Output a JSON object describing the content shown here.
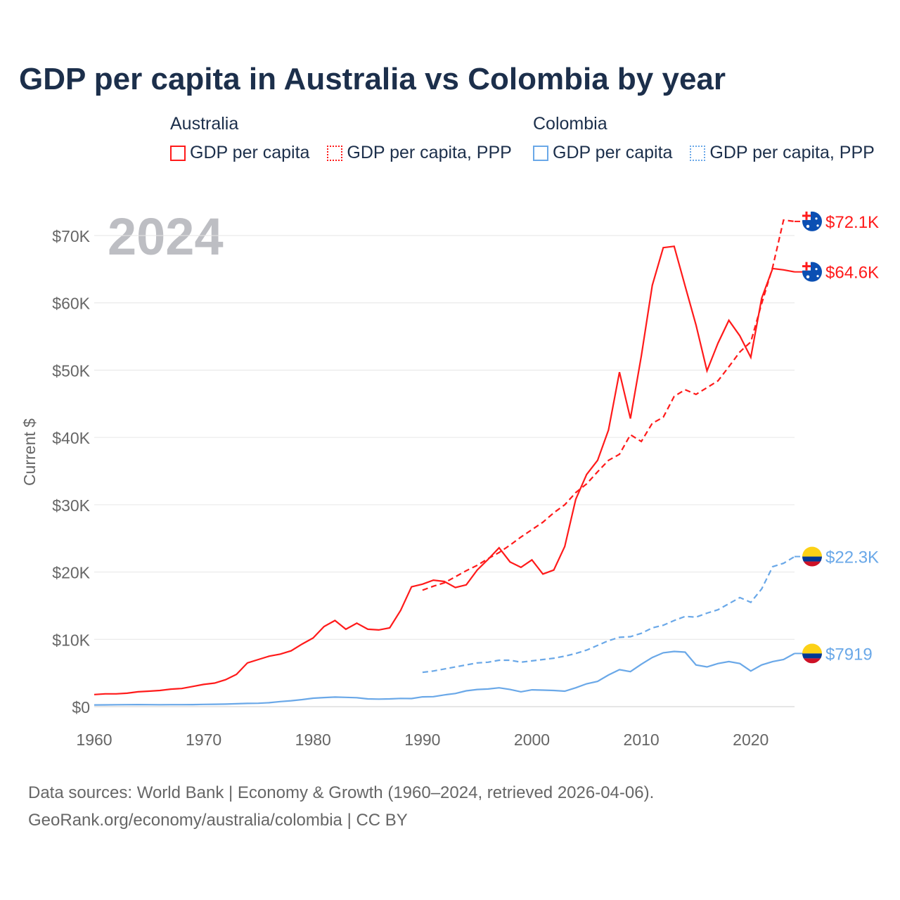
{
  "title": "GDP per capita in Australia vs Colombia by year",
  "legend": [
    {
      "group": "Australia",
      "items": [
        "GDP per capita",
        "GDP per capita, PPP"
      ],
      "color": "#ff1a1a"
    },
    {
      "group": "Colombia",
      "items": [
        "GDP per capita",
        "GDP per capita, PPP"
      ],
      "color": "#6aa8e8"
    }
  ],
  "footer": {
    "line1": "Data sources: World Bank | Economy & Growth (1960–2024, retrieved 2026-04-06).",
    "line2": "GeoRank.org/economy/australia/colombia | CC BY"
  },
  "chart_data": {
    "type": "line",
    "title": "GDP per capita in Australia vs Colombia by year",
    "year_watermark": "2024",
    "ylabel": "Current $",
    "xlabel": "",
    "xlim": [
      1960,
      2024
    ],
    "ylim": [
      0,
      70000
    ],
    "xticks": [
      1960,
      1970,
      1980,
      1990,
      2000,
      2010,
      2020
    ],
    "yticks": [
      0,
      10000,
      20000,
      30000,
      40000,
      50000,
      60000,
      70000
    ],
    "ytick_labels": [
      "$0",
      "$10K",
      "$20K",
      "$30K",
      "$40K",
      "$50K",
      "$60K",
      "$70K"
    ],
    "grid": true,
    "series": [
      {
        "name": "Australia GDP per capita",
        "color": "#ff1a1a",
        "dash": false,
        "start": 1960,
        "end_label": "$64.6K",
        "flag": "australia",
        "values": [
          1.8,
          1.9,
          1.9,
          2.0,
          2.2,
          2.3,
          2.4,
          2.6,
          2.7,
          3.0,
          3.3,
          3.5,
          4.0,
          4.8,
          6.5,
          7.0,
          7.5,
          7.8,
          8.3,
          9.3,
          10.2,
          11.9,
          12.8,
          11.5,
          12.4,
          11.5,
          11.4,
          11.7,
          14.3,
          17.8,
          18.2,
          18.8,
          18.6,
          17.7,
          18.1,
          20.3,
          21.9,
          23.6,
          21.5,
          20.7,
          21.8,
          19.7,
          20.3,
          23.8,
          30.8,
          34.5,
          36.6,
          41.1,
          49.7,
          42.8,
          52.1,
          62.6,
          68.2,
          68.4,
          62.5,
          56.7,
          49.9,
          54.0,
          57.4,
          55.1,
          51.9,
          60.7,
          65.1,
          64.9,
          64.6
        ]
      },
      {
        "name": "Australia GDP per capita, PPP",
        "color": "#ff1a1a",
        "dash": true,
        "start": 1990,
        "end_label": "$72.1K",
        "flag": "australia",
        "values": [
          17.3,
          17.9,
          18.4,
          19.3,
          20.2,
          21.0,
          22.0,
          22.9,
          24.0,
          25.2,
          26.3,
          27.4,
          28.8,
          30.0,
          31.8,
          33.1,
          34.9,
          36.6,
          37.5,
          40.4,
          39.4,
          42.1,
          43.0,
          46.1,
          47.1,
          46.4,
          47.4,
          48.4,
          50.5,
          52.7,
          54.2,
          59.9,
          65.3,
          72.3,
          72.1
        ]
      },
      {
        "name": "Colombia GDP per capita",
        "color": "#6aa8e8",
        "dash": false,
        "start": 1960,
        "end_label": "$7919",
        "flag": "colombia",
        "values": [
          0.25,
          0.26,
          0.28,
          0.29,
          0.3,
          0.29,
          0.28,
          0.29,
          0.29,
          0.3,
          0.33,
          0.35,
          0.38,
          0.43,
          0.48,
          0.5,
          0.58,
          0.75,
          0.88,
          1.05,
          1.25,
          1.35,
          1.42,
          1.38,
          1.33,
          1.15,
          1.12,
          1.15,
          1.22,
          1.2,
          1.45,
          1.48,
          1.75,
          1.95,
          2.35,
          2.55,
          2.62,
          2.8,
          2.55,
          2.2,
          2.5,
          2.45,
          2.4,
          2.3,
          2.8,
          3.4,
          3.75,
          4.7,
          5.5,
          5.2,
          6.3,
          7.3,
          8.0,
          8.2,
          8.1,
          6.2,
          5.9,
          6.4,
          6.7,
          6.4,
          5.3,
          6.2,
          6.7,
          7.0,
          7.9
        ]
      },
      {
        "name": "Colombia GDP per capita, PPP",
        "color": "#6aa8e8",
        "dash": true,
        "start": 1990,
        "end_label": "$22.3K",
        "flag": "colombia",
        "values": [
          5.1,
          5.3,
          5.6,
          5.9,
          6.2,
          6.5,
          6.6,
          6.9,
          6.9,
          6.6,
          6.8,
          7.0,
          7.2,
          7.5,
          7.9,
          8.4,
          9.1,
          9.8,
          10.3,
          10.4,
          10.9,
          11.7,
          12.1,
          12.8,
          13.4,
          13.3,
          13.9,
          14.4,
          15.3,
          16.2,
          15.5,
          17.5,
          20.8,
          21.3,
          22.3
        ]
      }
    ],
    "value_units": "thousands of current US$"
  }
}
